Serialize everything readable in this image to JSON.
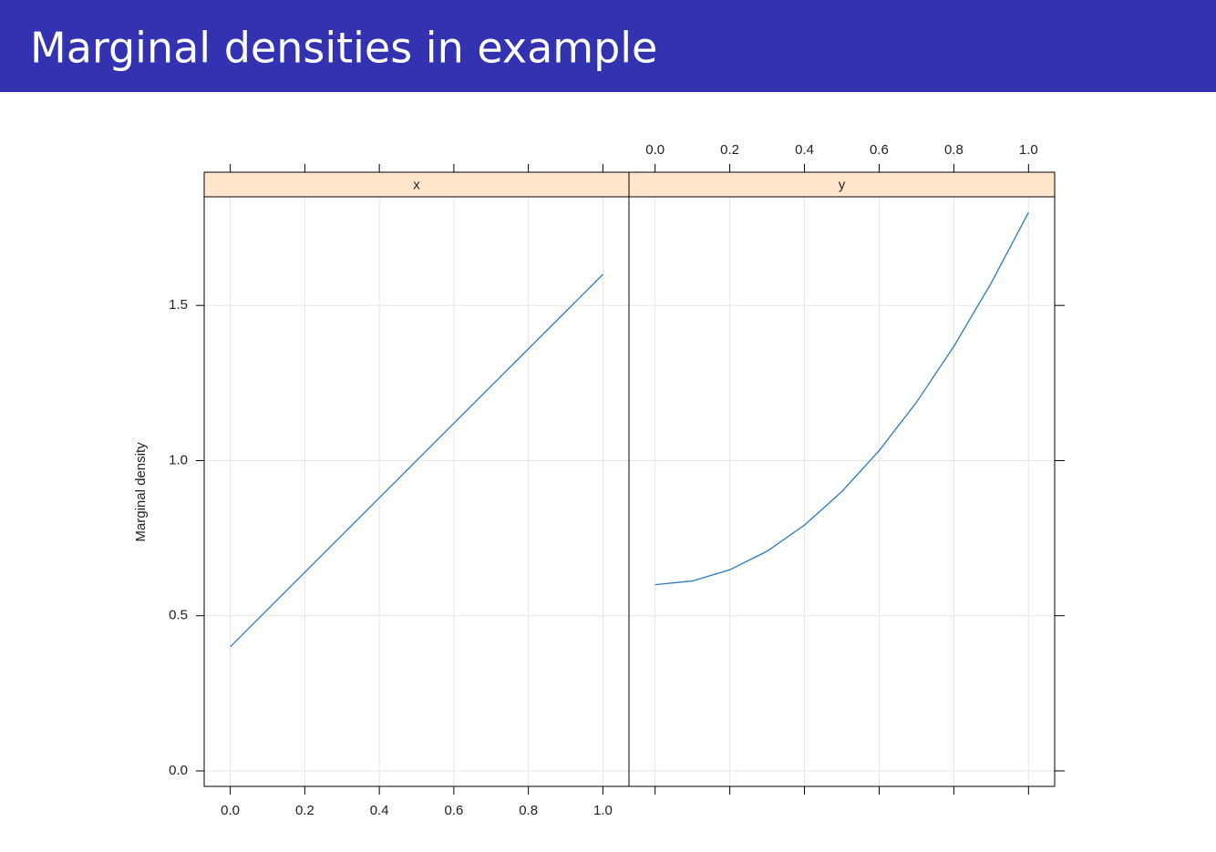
{
  "header": {
    "title": "Marginal densities in example"
  },
  "chart_data": {
    "type": "line",
    "ylabel": "Marginal density",
    "xlim": [
      -0.07,
      1.07
    ],
    "xticks": [
      {
        "value": 0,
        "label": "0.0"
      },
      0.2,
      0.4,
      0.6,
      0.8,
      {
        "value": 1,
        "label": "1.0"
      }
    ],
    "ylim": [
      -0.05,
      1.85
    ],
    "yticks": [
      {
        "value": 0,
        "label": "0.0"
      },
      0.5,
      {
        "value": 1,
        "label": "1.0"
      },
      1.5
    ],
    "grid": true,
    "strip_color": "#ffe5cc",
    "panels": [
      {
        "strip": "x",
        "color": "#2b7bc0",
        "x": [
          0,
          0.1,
          0.2,
          0.3,
          0.4,
          0.5,
          0.6,
          0.7,
          0.8,
          0.9,
          1.0
        ],
        "values": [
          0.4,
          0.52,
          0.64,
          0.76,
          0.88,
          1.0,
          1.12,
          1.24,
          1.36,
          1.48,
          1.6
        ]
      },
      {
        "strip": "y",
        "color": "#2b7bc0",
        "x": [
          0,
          0.1,
          0.2,
          0.3,
          0.4,
          0.5,
          0.6,
          0.7,
          0.8,
          0.9,
          1.0
        ],
        "values": [
          0.6,
          0.612,
          0.648,
          0.708,
          0.792,
          0.9,
          1.032,
          1.188,
          1.368,
          1.572,
          1.8
        ]
      }
    ]
  }
}
